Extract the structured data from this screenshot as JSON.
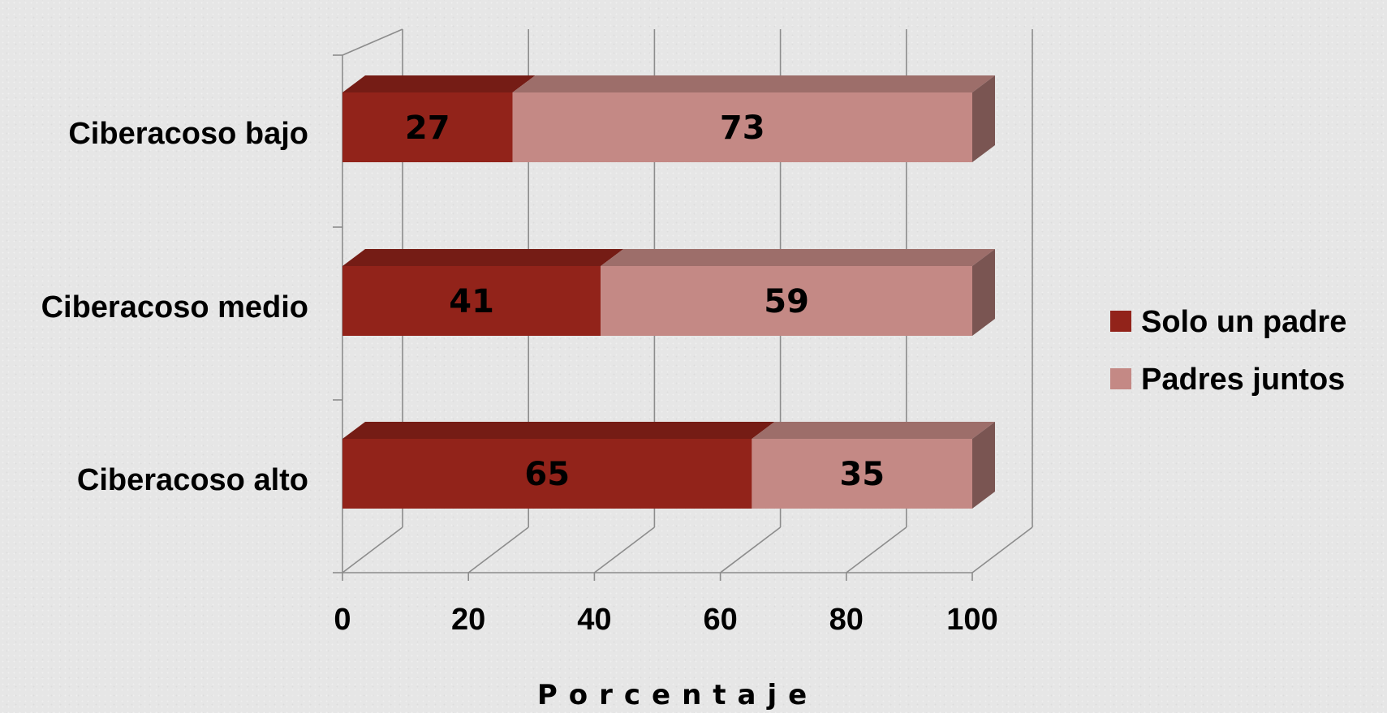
{
  "chart_data": {
    "type": "bar",
    "orientation": "horizontal",
    "stacked": true,
    "style": "3d",
    "categories": [
      "Ciberacoso bajo",
      "Ciberacoso medio",
      "Ciberacoso alto"
    ],
    "series": [
      {
        "name": "Solo un padre",
        "values": [
          27,
          41,
          65
        ],
        "color": "#92231a"
      },
      {
        "name": "Padres juntos",
        "values": [
          73,
          59,
          35
        ],
        "color": "#c48985"
      }
    ],
    "xlabel": "Porcentaje",
    "ylabel": "",
    "xlim": [
      0,
      100
    ],
    "x_ticks": [
      0,
      20,
      40,
      60,
      80,
      100
    ],
    "grid": true,
    "legend_position": "right",
    "data_labels": true
  }
}
